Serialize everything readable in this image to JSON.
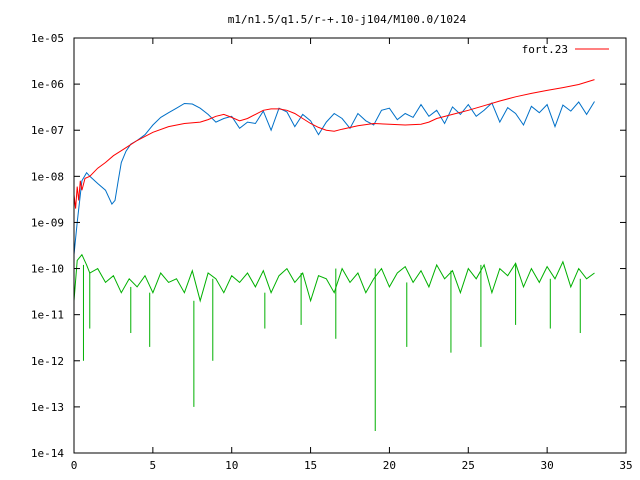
{
  "chart_data": {
    "type": "line",
    "title": "m1/n1.5/q1.5/r-+.10-j104/M100.0/1024",
    "xlabel": "",
    "ylabel": "",
    "xlim": [
      0,
      35
    ],
    "ylim": [
      1e-14,
      1e-05
    ],
    "yscale": "log",
    "grid": false,
    "legend_position": "top-right",
    "x_ticks": [
      0,
      5,
      10,
      15,
      20,
      25,
      30,
      35
    ],
    "x_tick_labels": [
      "0",
      "5",
      "10",
      "15",
      "20",
      "25",
      "30",
      "35"
    ],
    "y_ticks": [
      1e-14,
      1e-13,
      1e-12,
      1e-11,
      1e-10,
      1e-09,
      1e-08,
      1e-07,
      1e-06,
      1e-05
    ],
    "y_tick_labels": [
      "1e-14",
      "1e-13",
      "1e-12",
      "1e-11",
      "1e-10",
      "1e-09",
      "1e-08",
      "1e-07",
      "1e-06",
      "1e-05"
    ],
    "series": [
      {
        "name": "fort.23",
        "color": "#ff0000",
        "x": [
          0.0,
          0.1,
          0.2,
          0.3,
          0.4,
          0.5,
          0.7,
          1.0,
          1.5,
          2.0,
          2.5,
          3.0,
          4.0,
          5.0,
          6.0,
          7.0,
          8.0,
          8.5,
          9.0,
          9.5,
          10.0,
          10.5,
          11.0,
          11.5,
          12.0,
          12.5,
          13.0,
          13.5,
          14.0,
          14.5,
          15.0,
          15.5,
          16.0,
          16.5,
          17.0,
          18.0,
          19.0,
          20.0,
          21.0,
          22.0,
          22.5,
          23.0,
          24.0,
          25.0,
          26.0,
          27.0,
          28.0,
          29.0,
          30.0,
          31.0,
          32.0,
          33.0
        ],
        "y": [
          4e-09,
          2e-09,
          6e-09,
          3e-09,
          8e-09,
          5e-09,
          9e-09,
          1e-08,
          1.5e-08,
          2e-08,
          2.8e-08,
          3.6e-08,
          6e-08,
          9e-08,
          1.2e-07,
          1.4e-07,
          1.5e-07,
          1.7e-07,
          2e-07,
          2.2e-07,
          1.9e-07,
          1.6e-07,
          1.8e-07,
          2.2e-07,
          2.7e-07,
          2.9e-07,
          2.9e-07,
          2.7e-07,
          2.3e-07,
          1.8e-07,
          1.4e-07,
          1.15e-07,
          1e-07,
          9.5e-08,
          1.05e-07,
          1.25e-07,
          1.4e-07,
          1.35e-07,
          1.3e-07,
          1.35e-07,
          1.5e-07,
          1.8e-07,
          2.2e-07,
          2.7e-07,
          3.4e-07,
          4.3e-07,
          5.3e-07,
          6.3e-07,
          7.3e-07,
          8.4e-07,
          9.8e-07,
          1.25e-06
        ]
      },
      {
        "color": "#0070c8",
        "x": [
          0.0,
          0.2,
          0.5,
          0.8,
          1.0,
          1.5,
          2.0,
          2.4,
          2.6,
          2.8,
          3.0,
          3.3,
          3.6,
          4.0,
          4.5,
          5.0,
          5.5,
          6.0,
          6.5,
          7.0,
          7.5,
          8.0,
          8.5,
          9.0,
          9.5,
          10.0,
          10.5,
          11.0,
          11.5,
          12.0,
          12.5,
          13.0,
          13.5,
          14.0,
          14.5,
          15.0,
          15.5,
          16.0,
          16.5,
          17.0,
          17.5,
          18.0,
          18.5,
          19.0,
          19.5,
          20.0,
          20.5,
          21.0,
          21.5,
          22.0,
          22.5,
          23.0,
          23.5,
          24.0,
          24.5,
          25.0,
          25.5,
          26.0,
          26.5,
          27.0,
          27.5,
          28.0,
          28.5,
          29.0,
          29.5,
          30.0,
          30.5,
          31.0,
          31.5,
          32.0,
          32.5,
          33.0
        ],
        "y": [
          2e-10,
          1e-09,
          8e-09,
          1.2e-08,
          1e-08,
          7e-09,
          5e-09,
          2.5e-09,
          3e-09,
          8e-09,
          2e-08,
          3.5e-08,
          5e-08,
          6e-08,
          8e-08,
          1.3e-07,
          1.9e-07,
          2.4e-07,
          3e-07,
          3.8e-07,
          3.7e-07,
          3e-07,
          2.2e-07,
          1.5e-07,
          1.8e-07,
          2e-07,
          1.1e-07,
          1.5e-07,
          1.4e-07,
          2.6e-07,
          1e-07,
          3e-07,
          2.5e-07,
          1.2e-07,
          2.2e-07,
          1.6e-07,
          8e-08,
          1.5e-07,
          2.3e-07,
          1.8e-07,
          1.1e-07,
          2.3e-07,
          1.6e-07,
          1.3e-07,
          2.7e-07,
          3e-07,
          1.7e-07,
          2.3e-07,
          1.9e-07,
          3.6e-07,
          2e-07,
          2.7e-07,
          1.4e-07,
          3.2e-07,
          2.2e-07,
          3.6e-07,
          2e-07,
          2.7e-07,
          3.9e-07,
          1.5e-07,
          3.1e-07,
          2.3e-07,
          1.3e-07,
          3.3e-07,
          2.4e-07,
          3.6e-07,
          1.2e-07,
          3.5e-07,
          2.6e-07,
          4.1e-07,
          2.2e-07,
          4.2e-07
        ]
      },
      {
        "color": "#00b000",
        "x": [
          0.0,
          0.2,
          0.5,
          0.8,
          1.0,
          1.5,
          2.0,
          2.5,
          3.0,
          3.5,
          4.0,
          4.5,
          5.0,
          5.5,
          6.0,
          6.5,
          7.0,
          7.5,
          8.0,
          8.5,
          9.0,
          9.5,
          10.0,
          10.5,
          11.0,
          11.5,
          12.0,
          12.5,
          13.0,
          13.5,
          14.0,
          14.5,
          15.0,
          15.5,
          16.0,
          16.5,
          17.0,
          17.5,
          18.0,
          18.5,
          19.0,
          19.5,
          20.0,
          20.5,
          21.0,
          21.5,
          22.0,
          22.5,
          23.0,
          23.5,
          24.0,
          24.5,
          25.0,
          25.5,
          26.0,
          26.5,
          27.0,
          27.5,
          28.0,
          28.5,
          29.0,
          29.5,
          30.0,
          30.5,
          31.0,
          31.5,
          32.0,
          32.5,
          33.0
        ],
        "y": [
          2e-11,
          1.5e-10,
          2e-10,
          1.2e-10,
          8e-11,
          1e-10,
          5e-11,
          7e-11,
          3e-11,
          6e-11,
          4e-11,
          7e-11,
          3e-11,
          8e-11,
          5e-11,
          6e-11,
          3e-11,
          9e-11,
          2e-11,
          8e-11,
          6e-11,
          3e-11,
          7e-11,
          5e-11,
          8e-11,
          4e-11,
          9e-11,
          3e-11,
          7e-11,
          1e-10,
          5e-11,
          8e-11,
          2e-11,
          7e-11,
          6e-11,
          3e-11,
          1e-10,
          5e-11,
          8e-11,
          3e-11,
          6e-11,
          1e-10,
          4e-11,
          8e-11,
          1.1e-10,
          5e-11,
          9e-11,
          4e-11,
          1.2e-10,
          6e-11,
          9e-11,
          3e-11,
          1e-10,
          6e-11,
          1.2e-10,
          3e-11,
          1e-10,
          7e-11,
          1.3e-10,
          4e-11,
          1e-10,
          5e-11,
          1.1e-10,
          6e-11,
          1.4e-10,
          4e-11,
          1e-10,
          6e-11,
          8e-11
        ],
        "dips": [
          {
            "x": 0.6,
            "y": 1e-12
          },
          {
            "x": 1.0,
            "y": 5e-12
          },
          {
            "x": 3.6,
            "y": 4e-12
          },
          {
            "x": 4.8,
            "y": 2e-12
          },
          {
            "x": 7.6,
            "y": 1e-13
          },
          {
            "x": 8.8,
            "y": 1e-12
          },
          {
            "x": 12.1,
            "y": 5e-12
          },
          {
            "x": 14.4,
            "y": 6e-12
          },
          {
            "x": 16.6,
            "y": 3e-12
          },
          {
            "x": 19.1,
            "y": 3e-14
          },
          {
            "x": 21.1,
            "y": 2e-12
          },
          {
            "x": 23.9,
            "y": 1.5e-12
          },
          {
            "x": 25.8,
            "y": 2e-12
          },
          {
            "x": 28.0,
            "y": 6e-12
          },
          {
            "x": 30.2,
            "y": 5e-12
          },
          {
            "x": 32.1,
            "y": 4e-12
          }
        ]
      }
    ]
  }
}
